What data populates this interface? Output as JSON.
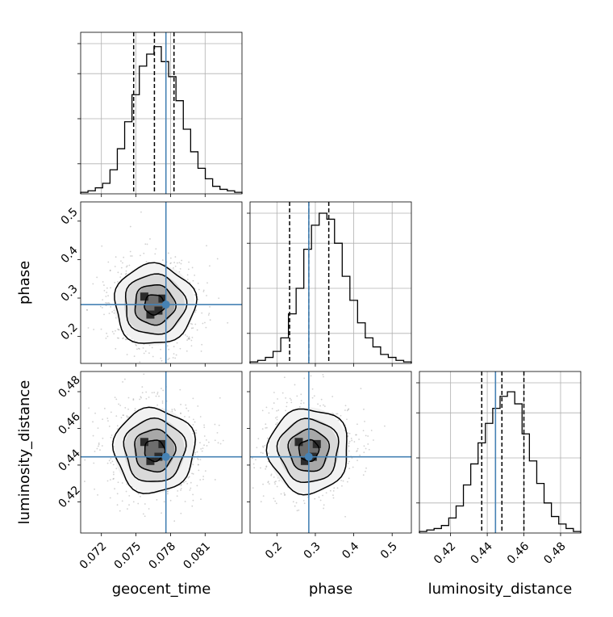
{
  "chart_data": {
    "type": "corner",
    "parameters": [
      {
        "key": "geocent_time",
        "label": "geocent_time",
        "range": [
          0.0702,
          0.0842
        ],
        "ticks": [
          0.072,
          0.075,
          0.078,
          0.081
        ],
        "tick_labels": [
          "0.072",
          "0.075",
          "0.078",
          "0.081"
        ],
        "quantiles": [
          0.0748,
          0.0766,
          0.0783
        ],
        "truth": 0.0776
      },
      {
        "key": "phase",
        "label": "phase",
        "range": [
          0.13,
          0.55
        ],
        "ticks": [
          0.2,
          0.3,
          0.4,
          0.5
        ],
        "tick_labels": [
          "0.2",
          "0.3",
          "0.4",
          "0.5"
        ],
        "quantiles": [
          0.233,
          0.283,
          0.335
        ],
        "truth": 0.283
      },
      {
        "key": "luminosity_distance",
        "label": "luminosity_distance",
        "range": [
          0.403,
          0.491
        ],
        "ticks": [
          0.42,
          0.44,
          0.46,
          0.48
        ],
        "tick_labels": [
          "0.42",
          "0.44",
          "0.46",
          "0.48"
        ],
        "quantiles": [
          0.437,
          0.448,
          0.46
        ],
        "truth": 0.4445
      }
    ],
    "histograms": [
      {
        "param": "geocent_time",
        "counts": [
          0.01,
          0.02,
          0.04,
          0.07,
          0.16,
          0.3,
          0.48,
          0.66,
          0.85,
          0.93,
          0.98,
          0.88,
          0.78,
          0.62,
          0.43,
          0.28,
          0.17,
          0.1,
          0.05,
          0.03,
          0.02,
          0.01
        ]
      },
      {
        "param": "phase",
        "counts": [
          0.01,
          0.02,
          0.04,
          0.08,
          0.17,
          0.33,
          0.5,
          0.76,
          0.92,
          1.0,
          0.96,
          0.8,
          0.58,
          0.42,
          0.27,
          0.17,
          0.11,
          0.06,
          0.04,
          0.02,
          0.01
        ]
      },
      {
        "param": "luminosity_distance",
        "counts": [
          0.01,
          0.02,
          0.03,
          0.05,
          0.1,
          0.18,
          0.32,
          0.46,
          0.6,
          0.73,
          0.83,
          0.91,
          0.94,
          0.86,
          0.66,
          0.48,
          0.33,
          0.2,
          0.11,
          0.06,
          0.03,
          0.01
        ]
      }
    ],
    "contours_2d": [
      {
        "x": "geocent_time",
        "y": "phase",
        "center": [
          0.0766,
          0.283
        ],
        "sigma": [
          0.00175,
          0.052
        ],
        "levels": [
          0.5,
          1.0,
          1.5,
          2.0
        ]
      },
      {
        "x": "geocent_time",
        "y": "luminosity_distance",
        "center": [
          0.0766,
          0.448
        ],
        "sigma": [
          0.00175,
          0.0115
        ],
        "levels": [
          0.5,
          1.0,
          1.5,
          2.0
        ]
      },
      {
        "x": "phase",
        "y": "luminosity_distance",
        "center": [
          0.283,
          0.448
        ],
        "sigma": [
          0.052,
          0.0115
        ],
        "levels": [
          0.5,
          1.0,
          1.5,
          2.0
        ]
      }
    ],
    "colors": {
      "truth": "#4682b4",
      "hist": "#000000",
      "quantile": "#000000",
      "grid": "#b0b0b0",
      "sample": "#999999"
    },
    "grid": true
  }
}
